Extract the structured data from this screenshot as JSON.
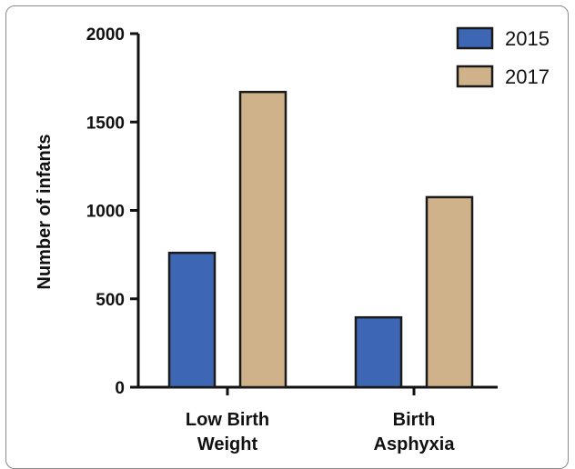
{
  "chart_data": {
    "type": "bar",
    "title": "",
    "xlabel": "",
    "ylabel": "Number of infants",
    "ylim": [
      0,
      2000
    ],
    "yticks": [
      0,
      500,
      1000,
      1500,
      2000
    ],
    "categories": [
      [
        "Low Birth",
        "Weight"
      ],
      [
        "Birth",
        "Asphyxia"
      ]
    ],
    "series": [
      {
        "name": "2015",
        "values": [
          760,
          395
        ],
        "color": "#3d67b5"
      },
      {
        "name": "2017",
        "values": [
          1670,
          1075
        ],
        "color": "#cfb28a"
      }
    ],
    "legend_position": "top-right",
    "grid": false
  }
}
